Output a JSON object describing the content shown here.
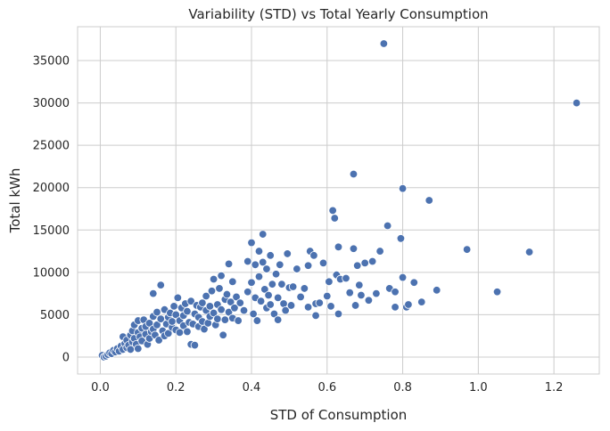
{
  "chart_data": {
    "type": "scatter",
    "title": "Variability (STD) vs Total Yearly Consumption",
    "xlabel": "STD of Consumption",
    "ylabel": "Total kWh",
    "xlim": [
      -0.06,
      1.32
    ],
    "ylim": [
      -2000,
      39000
    ],
    "xticks": [
      0.0,
      0.2,
      0.4,
      0.6,
      0.8,
      1.0,
      1.2
    ],
    "xtick_labels": [
      "0.0",
      "0.2",
      "0.4",
      "0.6",
      "0.8",
      "1.0",
      "1.2"
    ],
    "yticks": [
      0,
      5000,
      10000,
      15000,
      20000,
      25000,
      30000,
      35000
    ],
    "ytick_labels": [
      "0",
      "5000",
      "10000",
      "15000",
      "20000",
      "25000",
      "30000",
      "35000"
    ],
    "grid": true,
    "color": "#4c72b0",
    "points": [
      [
        0.005,
        200
      ],
      [
        0.01,
        0
      ],
      [
        0.015,
        100
      ],
      [
        0.02,
        300
      ],
      [
        0.025,
        500
      ],
      [
        0.03,
        400
      ],
      [
        0.035,
        800
      ],
      [
        0.04,
        600
      ],
      [
        0.045,
        1000
      ],
      [
        0.05,
        700
      ],
      [
        0.055,
        1300
      ],
      [
        0.06,
        900
      ],
      [
        0.06,
        2400
      ],
      [
        0.065,
        1600
      ],
      [
        0.07,
        1100
      ],
      [
        0.07,
        2000
      ],
      [
        0.075,
        1400
      ],
      [
        0.08,
        2600
      ],
      [
        0.08,
        900
      ],
      [
        0.085,
        3100
      ],
      [
        0.085,
        1800
      ],
      [
        0.09,
        2200
      ],
      [
        0.09,
        3800
      ],
      [
        0.095,
        1500
      ],
      [
        0.1,
        2900
      ],
      [
        0.1,
        4300
      ],
      [
        0.1,
        1000
      ],
      [
        0.105,
        2400
      ],
      [
        0.11,
        3400
      ],
      [
        0.11,
        1900
      ],
      [
        0.115,
        4400
      ],
      [
        0.12,
        2700
      ],
      [
        0.12,
        3600
      ],
      [
        0.125,
        1500
      ],
      [
        0.13,
        4000
      ],
      [
        0.13,
        2200
      ],
      [
        0.135,
        3000
      ],
      [
        0.14,
        4800
      ],
      [
        0.14,
        3300
      ],
      [
        0.14,
        7500
      ],
      [
        0.145,
        2600
      ],
      [
        0.15,
        3800
      ],
      [
        0.15,
        5300
      ],
      [
        0.155,
        2000
      ],
      [
        0.16,
        8500
      ],
      [
        0.16,
        4500
      ],
      [
        0.165,
        3100
      ],
      [
        0.17,
        5600
      ],
      [
        0.17,
        2500
      ],
      [
        0.175,
        3900
      ],
      [
        0.18,
        4700
      ],
      [
        0.18,
        2800
      ],
      [
        0.185,
        5200
      ],
      [
        0.19,
        3500
      ],
      [
        0.19,
        4200
      ],
      [
        0.195,
        6000
      ],
      [
        0.2,
        3200
      ],
      [
        0.2,
        5000
      ],
      [
        0.205,
        7000
      ],
      [
        0.21,
        4300
      ],
      [
        0.21,
        2900
      ],
      [
        0.215,
        5800
      ],
      [
        0.22,
        3700
      ],
      [
        0.22,
        4900
      ],
      [
        0.225,
        6300
      ],
      [
        0.23,
        3000
      ],
      [
        0.23,
        5400
      ],
      [
        0.235,
        4100
      ],
      [
        0.24,
        1500
      ],
      [
        0.24,
        6600
      ],
      [
        0.245,
        3900
      ],
      [
        0.25,
        5100
      ],
      [
        0.25,
        1400
      ],
      [
        0.255,
        6100
      ],
      [
        0.26,
        3600
      ],
      [
        0.26,
        4700
      ],
      [
        0.265,
        5900
      ],
      [
        0.27,
        4200
      ],
      [
        0.27,
        6400
      ],
      [
        0.275,
        3300
      ],
      [
        0.28,
        5500
      ],
      [
        0.28,
        7200
      ],
      [
        0.285,
        4000
      ],
      [
        0.29,
        6000
      ],
      [
        0.29,
        4800
      ],
      [
        0.295,
        7800
      ],
      [
        0.3,
        5200
      ],
      [
        0.3,
        9200
      ],
      [
        0.305,
        3800
      ],
      [
        0.31,
        6200
      ],
      [
        0.31,
        4500
      ],
      [
        0.315,
        8100
      ],
      [
        0.32,
        5600
      ],
      [
        0.32,
        9600
      ],
      [
        0.325,
        2600
      ],
      [
        0.33,
        6800
      ],
      [
        0.33,
        4400
      ],
      [
        0.335,
        7400
      ],
      [
        0.34,
        5300
      ],
      [
        0.34,
        11000
      ],
      [
        0.345,
        6500
      ],
      [
        0.35,
        4600
      ],
      [
        0.35,
        8900
      ],
      [
        0.355,
        5800
      ],
      [
        0.36,
        7100
      ],
      [
        0.365,
        4300
      ],
      [
        0.37,
        6400
      ],
      [
        0.38,
        5500
      ],
      [
        0.39,
        7700
      ],
      [
        0.39,
        11300
      ],
      [
        0.4,
        13500
      ],
      [
        0.4,
        8800
      ],
      [
        0.405,
        5100
      ],
      [
        0.41,
        10900
      ],
      [
        0.41,
        7000
      ],
      [
        0.415,
        4300
      ],
      [
        0.42,
        12500
      ],
      [
        0.42,
        9500
      ],
      [
        0.425,
        6600
      ],
      [
        0.43,
        14500
      ],
      [
        0.43,
        11200
      ],
      [
        0.435,
        8000
      ],
      [
        0.44,
        5800
      ],
      [
        0.44,
        10400
      ],
      [
        0.445,
        7300
      ],
      [
        0.45,
        6200
      ],
      [
        0.45,
        12000
      ],
      [
        0.455,
        8600
      ],
      [
        0.46,
        5100
      ],
      [
        0.465,
        9800
      ],
      [
        0.47,
        7000
      ],
      [
        0.47,
        4400
      ],
      [
        0.475,
        10900
      ],
      [
        0.48,
        8600
      ],
      [
        0.485,
        6300
      ],
      [
        0.49,
        5500
      ],
      [
        0.495,
        12200
      ],
      [
        0.5,
        8200
      ],
      [
        0.505,
        6100
      ],
      [
        0.51,
        8300
      ],
      [
        0.52,
        10400
      ],
      [
        0.53,
        7100
      ],
      [
        0.54,
        8100
      ],
      [
        0.55,
        5900
      ],
      [
        0.55,
        10800
      ],
      [
        0.555,
        12500
      ],
      [
        0.565,
        12000
      ],
      [
        0.57,
        6300
      ],
      [
        0.57,
        4900
      ],
      [
        0.58,
        6400
      ],
      [
        0.59,
        11100
      ],
      [
        0.6,
        7200
      ],
      [
        0.605,
        8900
      ],
      [
        0.61,
        6000
      ],
      [
        0.615,
        17300
      ],
      [
        0.62,
        16400
      ],
      [
        0.625,
        9700
      ],
      [
        0.63,
        5100
      ],
      [
        0.63,
        13000
      ],
      [
        0.635,
        9200
      ],
      [
        0.65,
        9300
      ],
      [
        0.66,
        7600
      ],
      [
        0.67,
        21600
      ],
      [
        0.67,
        12800
      ],
      [
        0.675,
        6100
      ],
      [
        0.68,
        10800
      ],
      [
        0.685,
        8500
      ],
      [
        0.69,
        7300
      ],
      [
        0.7,
        11100
      ],
      [
        0.71,
        6700
      ],
      [
        0.72,
        11300
      ],
      [
        0.73,
        7500
      ],
      [
        0.74,
        12500
      ],
      [
        0.75,
        37000
      ],
      [
        0.76,
        15500
      ],
      [
        0.765,
        8100
      ],
      [
        0.78,
        5900
      ],
      [
        0.78,
        7700
      ],
      [
        0.795,
        14000
      ],
      [
        0.8,
        9400
      ],
      [
        0.8,
        19900
      ],
      [
        0.81,
        5900
      ],
      [
        0.815,
        6200
      ],
      [
        0.83,
        8800
      ],
      [
        0.85,
        6500
      ],
      [
        0.87,
        18500
      ],
      [
        0.89,
        7900
      ],
      [
        0.97,
        12700
      ],
      [
        1.05,
        7700
      ],
      [
        1.135,
        12400
      ],
      [
        1.26,
        30000
      ]
    ]
  }
}
